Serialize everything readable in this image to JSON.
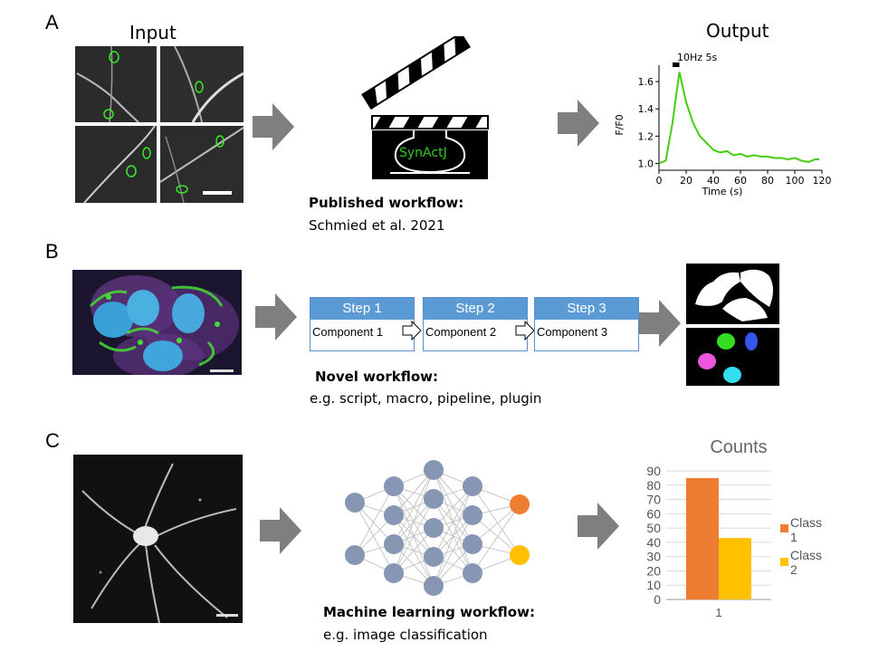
{
  "panels": {
    "a": {
      "letter": "A",
      "input_title": "Input",
      "output_title": "Output",
      "logo_text": "SynActJ",
      "caption_bold": "Published workflow:",
      "caption": "Schmied et al. 2021",
      "stim_label": "10Hz 5s",
      "chart_ylabel": "F/F0",
      "chart_xlabel": "Time (s)"
    },
    "b": {
      "letter": "B",
      "steps": [
        {
          "title": "Step 1",
          "component": "Component 1"
        },
        {
          "title": "Step 2",
          "component": "Component 2"
        },
        {
          "title": "Step 3",
          "component": "Component 3"
        }
      ],
      "caption_bold": "Novel workflow:",
      "caption": "e.g. script, macro, pipeline, plugin"
    },
    "c": {
      "letter": "C",
      "caption_bold": "Machine learning workflow:",
      "caption": "e.g. image classification",
      "bar_title": "Counts",
      "bar_x_tick": "1",
      "legend": [
        {
          "line1": "Class",
          "line2": "1",
          "color": "#ed7d31"
        },
        {
          "line1": "Class",
          "line2": "2",
          "color": "#ffc000"
        }
      ]
    }
  },
  "chart_data": [
    {
      "type": "line",
      "x": [
        0,
        5,
        10,
        15,
        20,
        25,
        30,
        35,
        40,
        45,
        50,
        55,
        60,
        65,
        70,
        75,
        80,
        85,
        90,
        95,
        100,
        105,
        110,
        115,
        118
      ],
      "y": [
        1.0,
        1.02,
        1.3,
        1.67,
        1.45,
        1.3,
        1.2,
        1.15,
        1.1,
        1.08,
        1.09,
        1.06,
        1.07,
        1.05,
        1.06,
        1.05,
        1.05,
        1.04,
        1.04,
        1.03,
        1.04,
        1.02,
        1.01,
        1.03,
        1.03
      ],
      "xticks": [
        0,
        20,
        40,
        60,
        80,
        100,
        120
      ],
      "yticks": [
        1.0,
        1.2,
        1.4,
        1.6
      ],
      "xlim": [
        0,
        120
      ],
      "ylim": [
        0.95,
        1.72
      ],
      "xlabel": "Time (s)",
      "ylabel": "F/F0",
      "annotation": "10Hz 5s",
      "color": "#44cc11"
    },
    {
      "type": "bar",
      "title": "Counts",
      "categories": [
        "1"
      ],
      "series": [
        {
          "name": "Class 1",
          "values": [
            85
          ],
          "color": "#ed7d31"
        },
        {
          "name": "Class 2",
          "values": [
            43
          ],
          "color": "#ffc000"
        }
      ],
      "yticks": [
        0,
        10,
        20,
        30,
        40,
        50,
        60,
        70,
        80,
        90
      ],
      "ylim": [
        0,
        90
      ],
      "grid": true,
      "legend": "right"
    }
  ]
}
